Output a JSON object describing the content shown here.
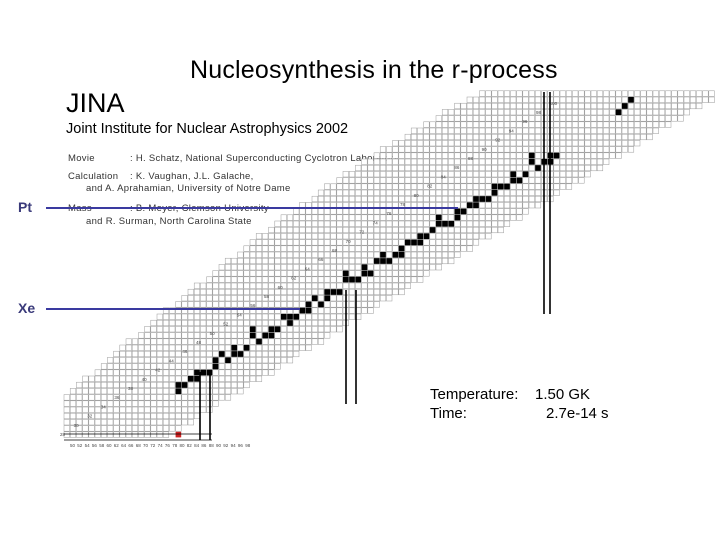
{
  "slide": {
    "title": "Nucleosynthesis in the r-process",
    "org_short": "JINA",
    "org_full": "Joint Institute for Nuclear Astrophysics 2002",
    "credits": [
      {
        "role": "Movie",
        "text": ": H. Schatz, National Superconducting Cyclotron Laboratory"
      },
      {
        "role": "Calculation",
        "text": ": K. Vaughan, J.L. Galache,"
      },
      {
        "role": "",
        "text": "and A. Aprahamian, University of Notre Dame"
      },
      {
        "role": "Mass",
        "text": ": B. Meyer, Clemson University"
      },
      {
        "role": "",
        "text": "and R. Surman, North Carolina State"
      }
    ],
    "element_markers": [
      {
        "label": "Pt",
        "color": "#3a3aa0"
      },
      {
        "label": "Xe",
        "color": "#3a3aa0"
      }
    ],
    "status": {
      "temperature_label": "Temperature:",
      "temperature_value": "1.50 GK",
      "time_label": "Time:",
      "time_value": "2.7e-14 s"
    }
  },
  "chart_data": {
    "type": "chart of nuclides",
    "x_tick_labels": [
      "50",
      "52",
      "54",
      "56",
      "58",
      "60",
      "62",
      "64",
      "66",
      "68",
      "70",
      "72",
      "74",
      "76",
      "78",
      "80",
      "82",
      "84",
      "86",
      "88",
      "90",
      "92",
      "94",
      "96",
      "98"
    ],
    "y_tick_labels": [
      "28",
      "30",
      "32",
      "34",
      "36",
      "38",
      "40",
      "42",
      "44",
      "46",
      "48",
      "50",
      "52",
      "54",
      "56",
      "58",
      "60",
      "62",
      "64",
      "66",
      "68",
      "70",
      "72",
      "74",
      "76",
      "78",
      "80",
      "82",
      "84",
      "86",
      "88",
      "90",
      "92",
      "94",
      "96",
      "98",
      "100"
    ],
    "magic_numbers": {
      "N": [
        50,
        82,
        126
      ],
      "Z": [
        50,
        82
      ]
    },
    "colors": {
      "abundant": "#000000",
      "seed": "#cc2222",
      "magic_line": "#000000",
      "marker_line": "#3a3aa0",
      "grid": "#999999"
    }
  }
}
